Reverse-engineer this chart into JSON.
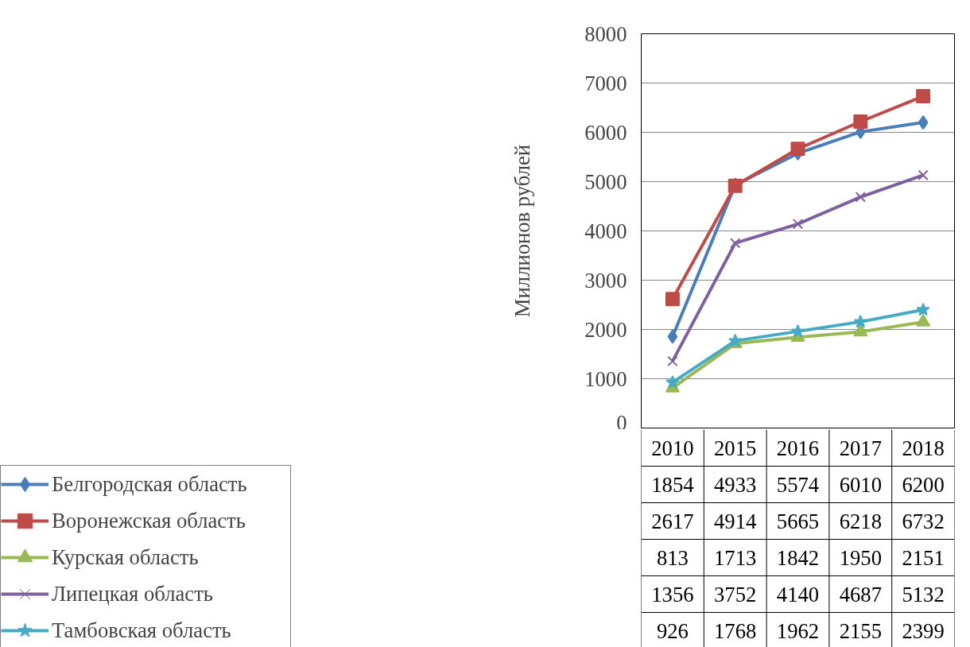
{
  "chart_data": {
    "type": "line",
    "ylabel": "Миллионов рублей",
    "categories": [
      "2010",
      "2015",
      "2016",
      "2017",
      "2018"
    ],
    "ylim": [
      0,
      8000
    ],
    "yticks": [
      0,
      1000,
      2000,
      3000,
      4000,
      5000,
      6000,
      7000,
      8000
    ],
    "grid": "y",
    "legend": "bottom",
    "data_labels": true,
    "series": [
      {
        "name": "Белгородская область",
        "color": "#4a7ebb",
        "marker": "diamond",
        "values": [
          1854,
          4933,
          5574,
          6010,
          6200
        ]
      },
      {
        "name": "Воронежская область",
        "color": "#be4b48",
        "marker": "square",
        "values": [
          2617,
          4914,
          5665,
          6218,
          6732
        ]
      },
      {
        "name": "Курская область",
        "color": "#98b954",
        "marker": "triangle",
        "values": [
          813,
          1713,
          1842,
          1950,
          2151
        ]
      },
      {
        "name": "Липецкая область",
        "color": "#7d60a0",
        "marker": "cross",
        "values": [
          1356,
          3752,
          4140,
          4687,
          5132
        ]
      },
      {
        "name": "Тамбовская область",
        "color": "#46aac5",
        "marker": "star",
        "values": [
          926,
          1768,
          1962,
          2155,
          2399
        ]
      }
    ]
  }
}
